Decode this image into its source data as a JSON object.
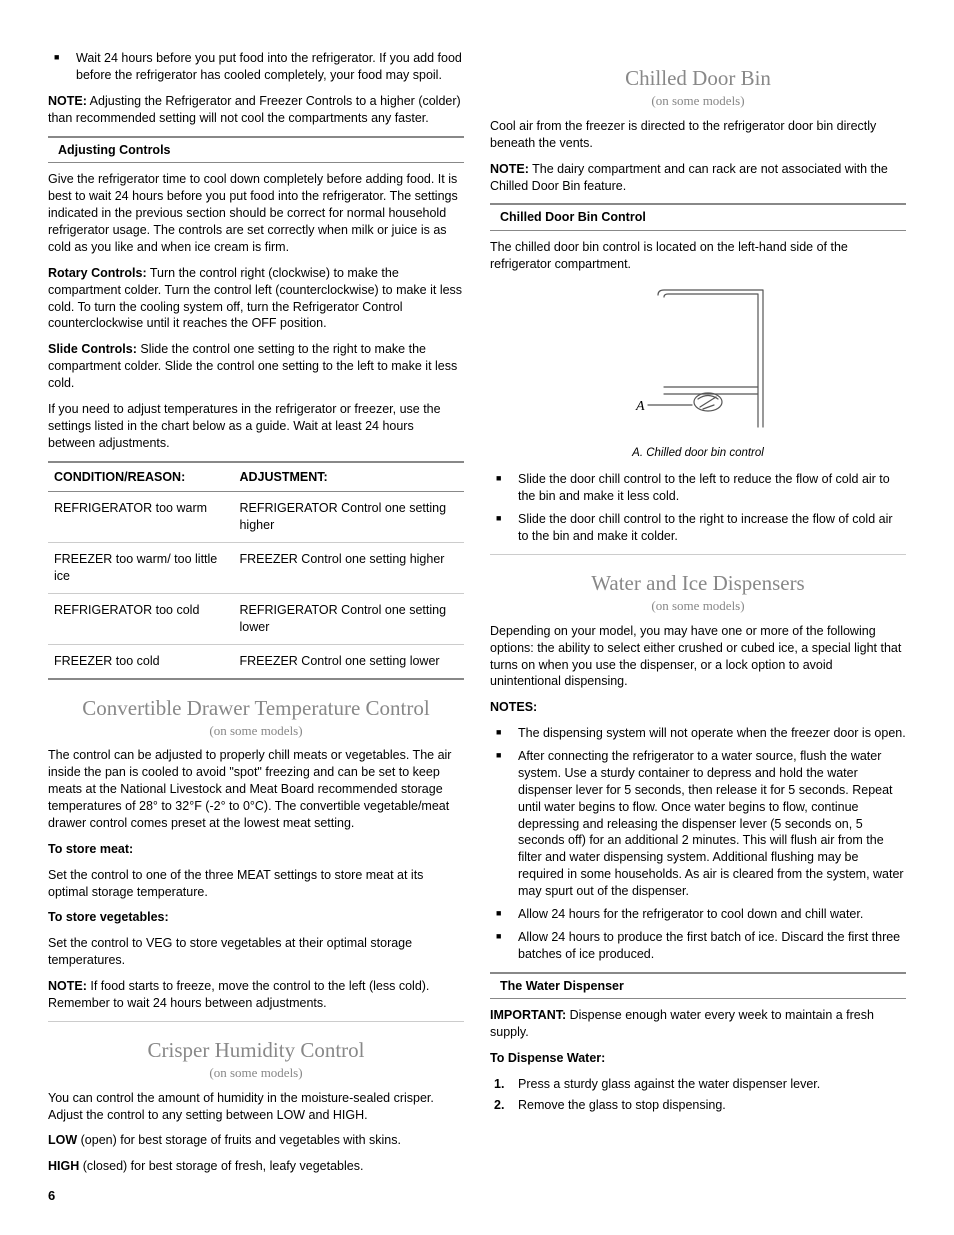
{
  "page_number": "6",
  "left": {
    "intro_bullet": "Wait 24 hours before you put food into the refrigerator. If you add food before the refrigerator has cooled completely, your food may spoil.",
    "note1_label": "NOTE:",
    "note1": " Adjusting the Refrigerator and Freezer Controls to a higher (colder) than recommended setting will not cool the compartments any faster.",
    "adj_heading": "Adjusting Controls",
    "adj_p1": "Give the refrigerator time to cool down completely before adding food. It is best to wait 24 hours before you put food into the refrigerator. The settings indicated in the previous section should be correct for normal household refrigerator usage. The controls are set correctly when milk or juice is as cold as you like and when ice cream is firm.",
    "rotary_label": "Rotary Controls:",
    "rotary_text": " Turn the control right (clockwise) to make the compartment colder. Turn the control left (counterclockwise) to make it less cold. To turn the cooling system off, turn the Refrigerator Control counterclockwise until it reaches the OFF position.",
    "slide_label": "Slide Controls:",
    "slide_text": " Slide the control one setting to the right to make the compartment colder. Slide the control one setting to the left to make it less cold.",
    "adj_p4": "If you need to adjust temperatures in the refrigerator or freezer, use the settings listed in the chart below as a guide. Wait at least 24 hours between adjustments.",
    "table": {
      "h1": "CONDITION/REASON:",
      "h2": "ADJUSTMENT:",
      "rows": [
        [
          "REFRIGERATOR too warm",
          "REFRIGERATOR Control one setting higher"
        ],
        [
          "FREEZER too warm/ too little ice",
          "FREEZER Control one setting higher"
        ],
        [
          "REFRIGERATOR too cold",
          "REFRIGERATOR Control one setting lower"
        ],
        [
          "FREEZER too cold",
          "FREEZER Control one setting lower"
        ]
      ]
    },
    "conv_heading": "Convertible Drawer Temperature Control",
    "on_some": "(on some models)",
    "conv_p1": "The control can be adjusted to properly chill meats or vegetables. The air inside the pan is cooled to avoid \"spot\" freezing and can be set to keep meats at the National Livestock and Meat Board recommended storage temperatures of 28° to 32°F (-2° to 0°C). The convertible vegetable/meat drawer control comes preset at the lowest meat setting.",
    "store_meat_label": "To store meat:",
    "store_meat_text": "Set the control to one of the three MEAT settings to store meat at its optimal storage temperature.",
    "store_veg_label": "To store vegetables:",
    "store_veg_text": "Set the control to VEG to store vegetables at their optimal storage temperatures.",
    "conv_note_label": "NOTE:",
    "conv_note_text": " If food starts to freeze, move the control to the left (less cold). Remember to wait 24 hours between adjustments.",
    "crisper_heading": "Crisper Humidity Control",
    "crisper_p1": "You can control the amount of humidity in the moisture-sealed crisper. Adjust the control to any setting between LOW and HIGH.",
    "low_label": "LOW",
    "low_text": " (open) for best storage of fruits and vegetables with skins.",
    "high_label": "HIGH",
    "high_text": " (closed) for best storage of fresh, leafy vegetables."
  },
  "right": {
    "chilled_heading": "Chilled Door Bin",
    "on_some": "(on some models)",
    "chilled_p1": "Cool air from the freezer is directed to the refrigerator door bin directly beneath the vents.",
    "chilled_note_label": "NOTE:",
    "chilled_note_text": " The dairy compartment and can rack are not associated with the Chilled Door Bin feature.",
    "chilled_ctrl_heading": "Chilled Door Bin Control",
    "chilled_p2": "The chilled door bin control is located on the left-hand side of the refrigerator compartment.",
    "fig_label_A": "A",
    "fig_caption": "A. Chilled door bin control",
    "chilled_b1": "Slide the door chill control to the left to reduce the flow of cold air to the bin and make it less cold.",
    "chilled_b2": "Slide the door chill control to the right to increase the flow of cold air to the bin and make it colder.",
    "water_heading": "Water and Ice Dispensers",
    "water_p1": "Depending on your model, you may have one or more of the following options: the ability to select either crushed or cubed ice, a special light that turns on when you use the dispenser, or a lock option to avoid unintentional dispensing.",
    "notes_label": "NOTES:",
    "water_b1": "The dispensing system will not operate when the freezer door is open.",
    "water_b2": "After connecting the refrigerator to a water source, flush the water system. Use a sturdy container to depress and hold the water dispenser lever for 5 seconds, then release it for 5 seconds. Repeat until water begins to flow. Once water begins to flow, continue depressing and releasing the dispenser lever (5 seconds on, 5 seconds off) for an additional 2 minutes. This will flush air from the filter and water dispensing system. Additional flushing may be required in some households. As air is cleared from the system, water may spurt out of the dispenser.",
    "water_b3": "Allow 24 hours for the refrigerator to cool down and chill water.",
    "water_b4": "Allow 24 hours to produce the first batch of ice. Discard the first three batches of ice produced.",
    "water_disp_heading": "The Water Dispenser",
    "important_label": "IMPORTANT:",
    "important_text": " Dispense enough water every week to maintain a fresh supply.",
    "dispense_label": "To Dispense Water:",
    "dispense_1": "Press a sturdy glass against the water dispenser lever.",
    "dispense_2": "Remove the glass to stop dispensing."
  },
  "figure": {
    "stroke": "#555555",
    "stroke_width": 1.2,
    "width": 180,
    "height": 150
  }
}
